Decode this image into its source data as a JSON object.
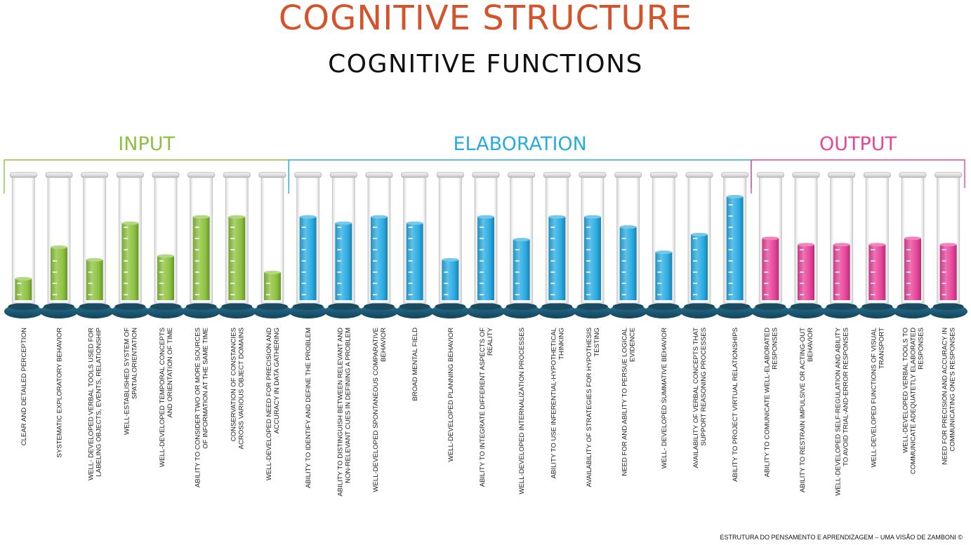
{
  "title": "COGNITIVE STRUCTURE",
  "subtitle": "COGNITIVE FUNCTIONS",
  "credit": "ESTRUTURA DO PENSAMENTO E APRENDIZAGEM – UMA VISÃO DE ZAMBONI ©",
  "colors": {
    "title": "#d4532a",
    "input": "#8cc23e",
    "elaboration": "#29abe2",
    "output": "#e8449a",
    "base": "#1f5f7a"
  },
  "chart_data": {
    "type": "bar",
    "ylim": [
      0,
      100
    ],
    "groups": [
      {
        "name": "INPUT",
        "color": "#8cc23e",
        "items": [
          {
            "lines": [
              "CLEAR AND DETAILED PERCEPTION"
            ],
            "value": 17
          },
          {
            "lines": [
              "SYSTEMATIC EXPLORATORY BEHAVIOR"
            ],
            "value": 42
          },
          {
            "lines": [
              "WELL- DEVELOPED VERBAL TOOLS USED FOR",
              "LABELING OBJECTS, EVENTS, RELATIONSHIP"
            ],
            "value": 32
          },
          {
            "lines": [
              "WELL-ESTABLISHED SYSTEM OF",
              "SPATIALORIENTATION"
            ],
            "value": 61
          },
          {
            "lines": [
              "WELL-DEVELOPED TEMPORAL CONCEPTS",
              "AND ORIENTATION OF TIME"
            ],
            "value": 35
          },
          {
            "lines": [
              "ABILITY TO CONSIDER TWO OR MORE SOURCES",
              "OF INFORMATION AT THE SAME TIME"
            ],
            "value": 66
          },
          {
            "lines": [
              "CONSERVATION OF CONSTANCIES",
              "ACROSS VARIOUS OBJECT DOMAINS"
            ],
            "value": 66
          },
          {
            "lines": [
              "WELL-DEVELOPED NEED FOR PRECISION AND",
              "ACCURACY IN DATA GATHERING"
            ],
            "value": 22
          }
        ]
      },
      {
        "name": "ELABORATION",
        "color": "#29abe2",
        "items": [
          {
            "lines": [
              "ABILITY TO IDENTIFY AND DEFINE  THE PROBLEM"
            ],
            "value": 66
          },
          {
            "lines": [
              "ABILITY TO DISTINGUISH BETWEEN RELEVANT AND",
              "NON-RELEVANT CUES IN DEFINING A PROBLEM"
            ],
            "value": 61
          },
          {
            "lines": [
              "WELL-DEVELOPED SPONTANEOUS COMPARATIVE",
              "BEHAVIOR"
            ],
            "value": 66
          },
          {
            "lines": [
              "BROAD MENTAL FIELD"
            ],
            "value": 61
          },
          {
            "lines": [
              "WELL-DEVELOPED PLANNING BEHAVIOR"
            ],
            "value": 32
          },
          {
            "lines": [
              "ABILITY TO INTEGRATE DIFFERENT ASPECTS OF",
              "REALITY"
            ],
            "value": 66
          },
          {
            "lines": [
              "WELL-DEVELOPED INTERNALIZATION PROCESSES"
            ],
            "value": 48
          },
          {
            "lines": [
              "ABILITY TO USE INFERENTIAL-HYPOTHETICAL",
              "THINKING"
            ],
            "value": 66
          },
          {
            "lines": [
              "AVAILABILITY OF STRATEGIES FOR HYPOTHESIS",
              "TESTING"
            ],
            "value": 66
          },
          {
            "lines": [
              "NEED FOR AND ABILITY TO PERSUE LOGICAL",
              "EVIDENCE"
            ],
            "value": 58
          },
          {
            "lines": [
              "WELL- DEVELOPED SUMMATIVE BEHAVIOR"
            ],
            "value": 38
          },
          {
            "lines": [
              "AVAILABILITY OF VERBAL CONCEPTS THAT",
              "SUPPORT REASONING PROCESSES"
            ],
            "value": 52
          },
          {
            "lines": [
              "ABILITY TO PROJECT VIRTUAL RELATIONSHIPS"
            ],
            "value": 82
          }
        ]
      },
      {
        "name": "OUTPUT",
        "color": "#e8449a",
        "items": [
          {
            "lines": [
              "ABILITY TO COMUNICATE WELL-ELABORATED",
              "RESPONSES"
            ],
            "value": 49
          },
          {
            "lines": [
              "ABILITY TO RESTRAIN IMPULSIVE OR ACTING-OUT",
              "BEHAVIOR"
            ],
            "value": 44
          },
          {
            "lines": [
              "WELL-DEVELOPED  SELF-REGULATION AND ABILITY",
              "TO AVOID TRIAL-AND-ERROR RESPONSES"
            ],
            "value": 44
          },
          {
            "lines": [
              "WELL-DEVELOPED FUNCTIONS OF VISUAL",
              "TRANSPORT"
            ],
            "value": 44
          },
          {
            "lines": [
              "WELL-DEVELOPED VERBAL TOOLS TO",
              "COMMUNICATE  ADEQUATETLY ELABORATED",
              "RESPONSES"
            ],
            "value": 49
          },
          {
            "lines": [
              "NEED FOR PRECISION AND ACCURACY IN",
              "COMMUNICATING ONE'S  RESPONSES"
            ],
            "value": 44
          }
        ]
      }
    ]
  }
}
